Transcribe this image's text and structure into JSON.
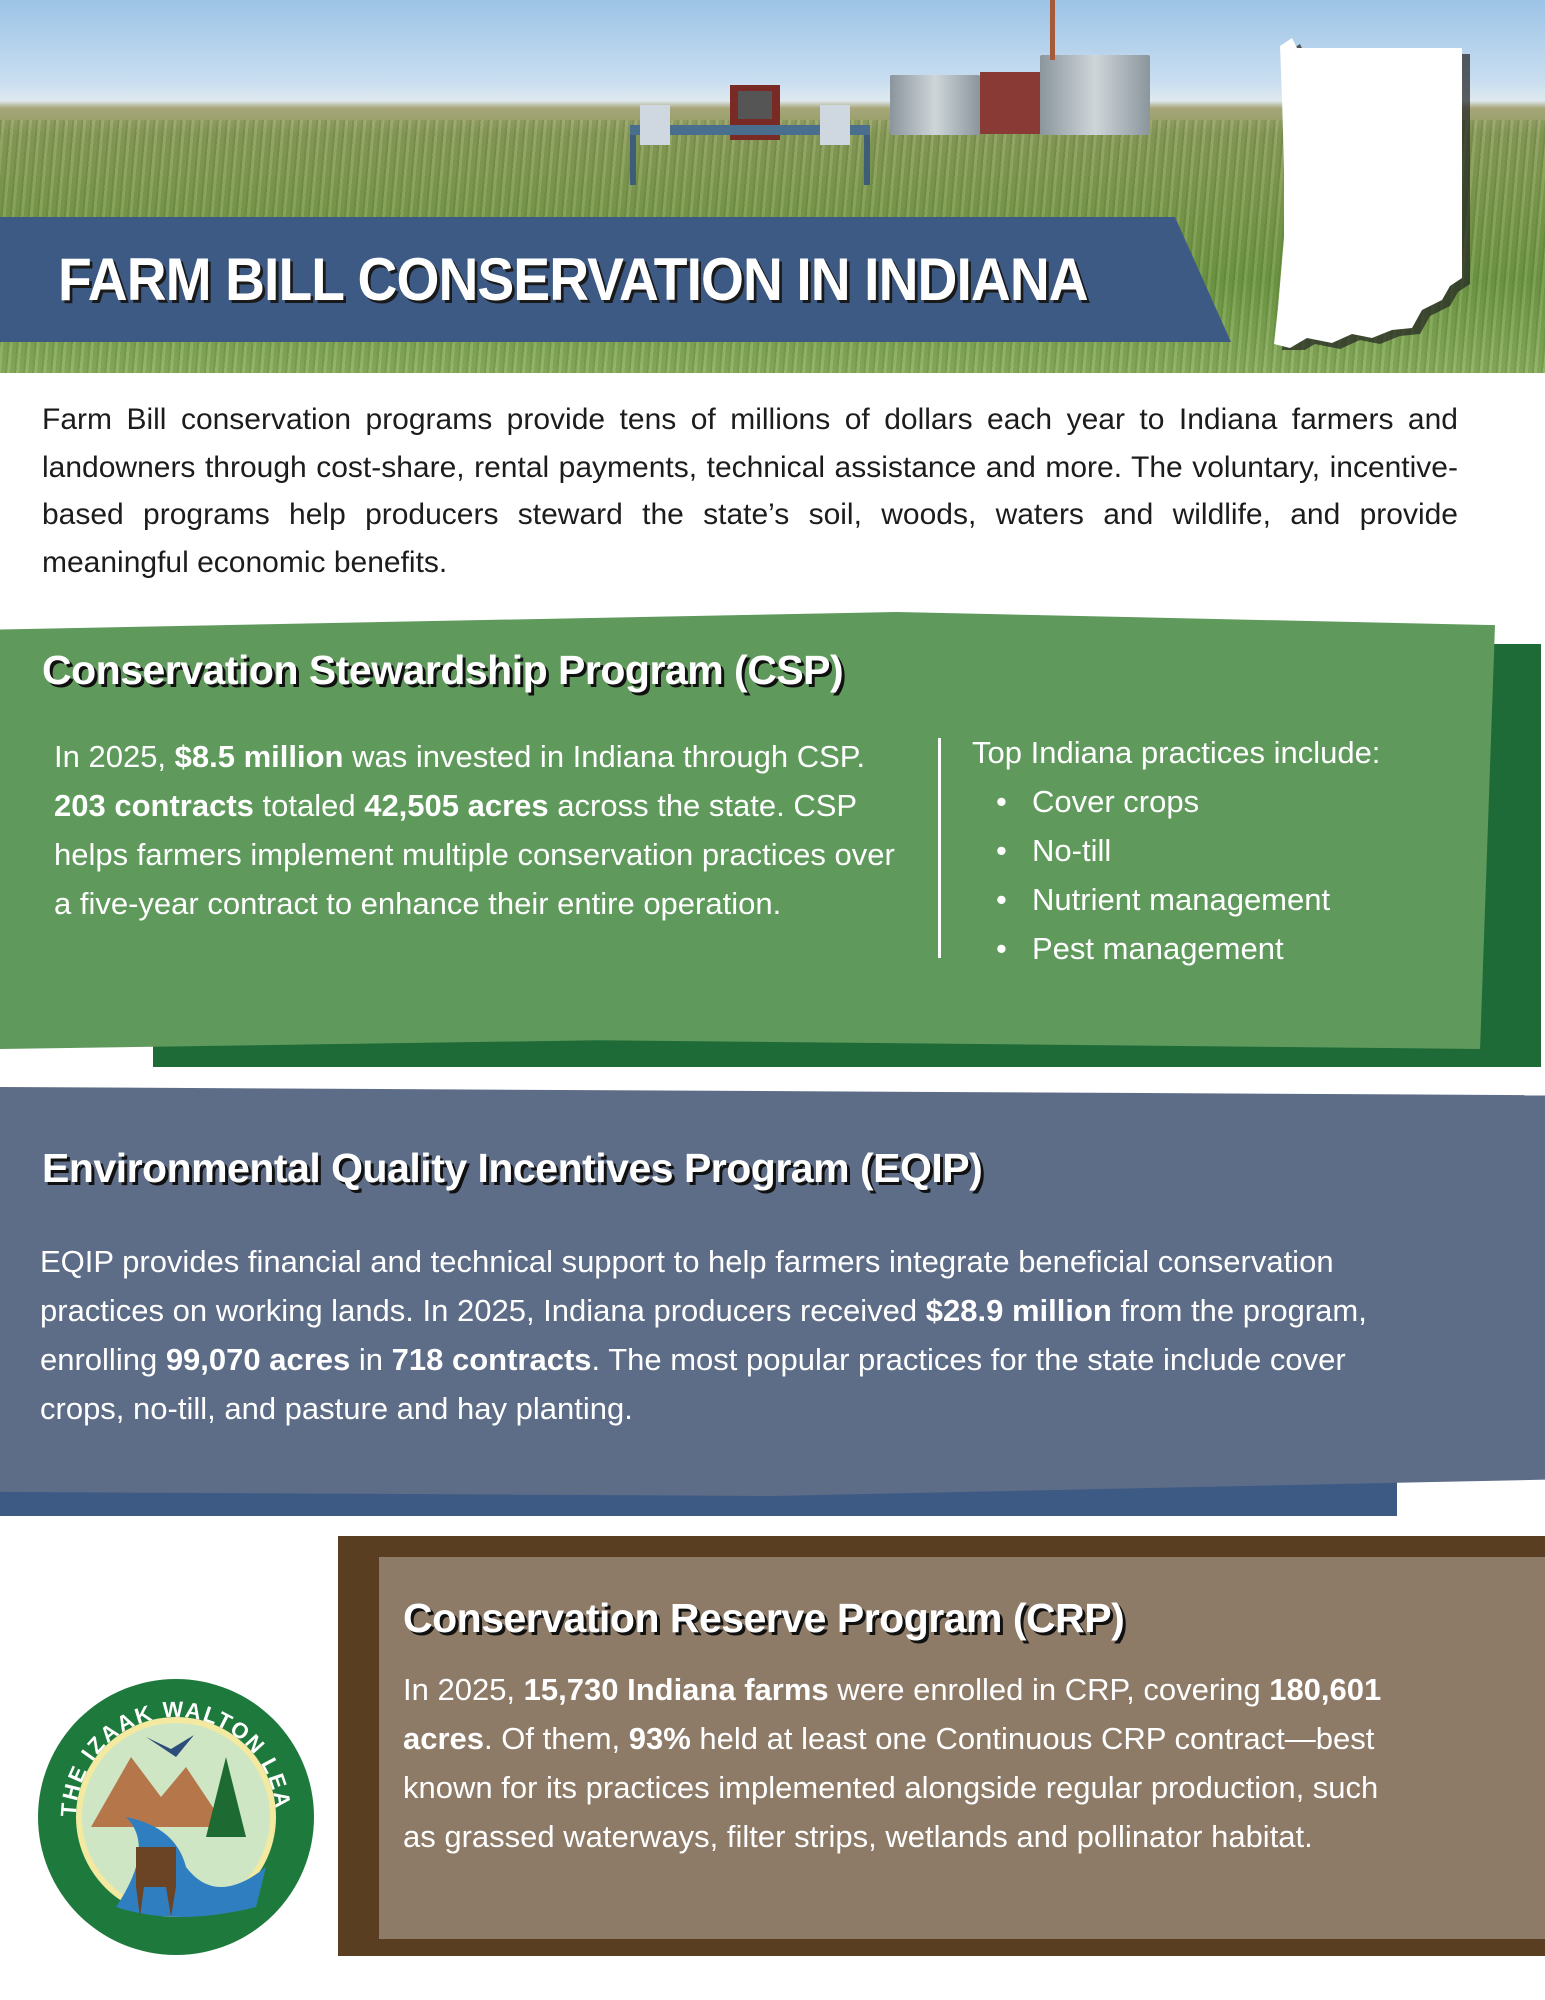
{
  "header": {
    "title": "FARM BILL CONSERVATION IN INDIANA"
  },
  "intro": "Farm Bill conservation programs provide tens of millions of dollars each year to Indiana farmers and landowners through cost-share, rental payments, technical assistance and more. The voluntary, incentive-based programs help producers steward the state’s soil, woods, waters and wildlife, and provide meaningful economic benefits.",
  "csp": {
    "title": "Conservation Stewardship Program (CSP)",
    "t1": "In 2025, ",
    "b1": "$8.5 million",
    "t2": " was invested in Indiana through CSP. ",
    "b2": "203 contracts",
    "t3": " totaled ",
    "b3": "42,505 acres",
    "t4": " across the state. CSP helps farmers implement multiple conservation practices over a five-year contract to enhance their entire operation.",
    "practices_label": "Top Indiana practices include:",
    "practices": [
      "Cover crops",
      "No-till",
      "Nutrient management",
      "Pest management"
    ]
  },
  "eqip": {
    "title": "Environmental Quality Incentives Program (EQIP)",
    "t1": "EQIP provides financial and technical support to help farmers integrate beneficial conservation practices on working lands. In 2025, Indiana producers received ",
    "b1": "$28.9 million",
    "t2": " from the program, enrolling ",
    "b2": "99,070 acres",
    "t3": " in ",
    "b3": "718 contracts",
    "t4": ". The most popular practices for the state include cover crops, no-till, and pasture and hay planting."
  },
  "crp": {
    "title": "Conservation Reserve Program (CRP)",
    "t1": "In 2025, ",
    "b1": "15,730 Indiana farms",
    "t2": " were enrolled in CRP, covering ",
    "b2": "180,601 acres",
    "t3": ". Of them, ",
    "b3": "93%",
    "t4": " held at least one Continuous CRP contract—best known for its practices implemented alongside regular production, such as grassed waterways, filter strips, wetlands and pollinator habitat."
  },
  "logo": {
    "text": "THE IZAAK WALTON LEAGUE OF AMERICA"
  },
  "colors": {
    "title_bar": "#3d5a85",
    "csp": "#5f9a5c",
    "csp_shadow": "#1f6b38",
    "eqip": "#5d6c87",
    "eqip_shadow": "#3d5a85",
    "crp": "#8d7a67",
    "crp_frame": "#5a3e22"
  }
}
